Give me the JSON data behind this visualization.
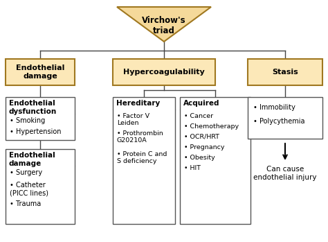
{
  "bg_color": "#ffffff",
  "triangle_color": "#f5d99a",
  "triangle_edge": "#a07820",
  "header_box_color": "#fce8b8",
  "header_box_edge": "#a07820",
  "white_box_edge": "#555555",
  "white_box_color": "#ffffff",
  "title_text": "Virchow's\ntriad",
  "col1_header": "Endothelial\ndamage",
  "col2_header": "Hypercoagulability",
  "col3_header": "Stasis",
  "box1_title": "Endothelial\ndysfunction",
  "box1_items": [
    "Smoking",
    "Hypertension"
  ],
  "box2_title": "Endothelial\ndamage",
  "box2_items": [
    "Surgery",
    "Catheter\n(PICC lines)",
    "Trauma"
  ],
  "box3_title": "Hereditary",
  "box3_items": [
    "Factor V\nLeiden",
    "Prothrombin\nG20210A",
    "Protein C and\nS deficiency"
  ],
  "box4_title": "Acquired",
  "box4_items": [
    "Cancer",
    "Chemotherapy",
    "OCR/HRT",
    "Pregnancy",
    "Obesity",
    "HIT"
  ],
  "box5_items": [
    "Immobility",
    "Polycythemia"
  ],
  "arrow_text": "Can cause\nendothelial injury"
}
